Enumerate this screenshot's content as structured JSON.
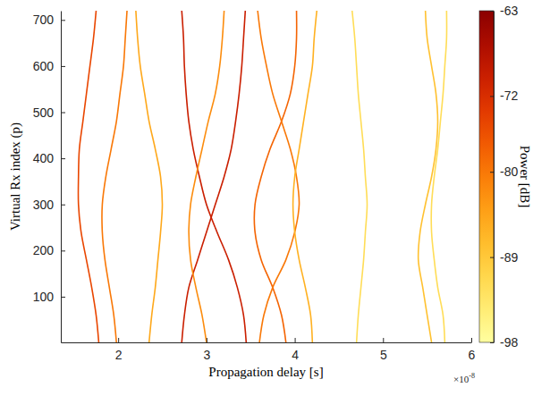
{
  "chart_data": {
    "type": "line",
    "x_label": "Propagation delay [s]",
    "y_label": "Virtual Rx index (p)",
    "x_multiplier": {
      "base": "×10",
      "exponent": "-8"
    },
    "xlim": [
      1.35,
      6
    ],
    "xticks": [
      2,
      3,
      4,
      5,
      6
    ],
    "ylim": [
      1,
      720
    ],
    "yticks": [
      100,
      200,
      300,
      400,
      500,
      600,
      700
    ],
    "grid": false,
    "y": [
      1,
      60,
      120,
      180,
      240,
      300,
      360,
      420,
      480,
      540,
      600,
      660,
      720
    ],
    "series": [
      {
        "power": -75,
        "values": [
          1.78,
          1.75,
          1.7,
          1.64,
          1.58,
          1.55,
          1.55,
          1.56,
          1.6,
          1.64,
          1.68,
          1.72,
          1.75
        ]
      },
      {
        "power": -80,
        "values": [
          1.98,
          1.95,
          1.9,
          1.85,
          1.82,
          1.82,
          1.86,
          1.92,
          1.98,
          2.02,
          2.06,
          2.08,
          2.1
        ]
      },
      {
        "power": -85,
        "values": [
          2.35,
          2.38,
          2.42,
          2.45,
          2.48,
          2.5,
          2.48,
          2.42,
          2.35,
          2.3,
          2.25,
          2.22,
          2.2
        ]
      },
      {
        "power": -70,
        "values": [
          2.72,
          2.75,
          2.8,
          2.9,
          3.0,
          3.1,
          3.2,
          3.28,
          3.33,
          3.37,
          3.4,
          3.42,
          3.44
        ]
      },
      {
        "power": -70,
        "values": [
          3.45,
          3.42,
          3.35,
          3.25,
          3.12,
          3.0,
          2.92,
          2.85,
          2.8,
          2.77,
          2.75,
          2.74,
          2.72
        ]
      },
      {
        "power": -82,
        "values": [
          3.0,
          2.95,
          2.88,
          2.82,
          2.8,
          2.82,
          2.88,
          2.95,
          3.02,
          3.1,
          3.15,
          3.18,
          3.2
        ]
      },
      {
        "power": -78,
        "values": [
          3.9,
          3.85,
          3.75,
          3.62,
          3.55,
          3.55,
          3.62,
          3.72,
          3.85,
          3.95,
          4.0,
          4.02,
          4.02
        ]
      },
      {
        "power": -80,
        "values": [
          3.6,
          3.65,
          3.75,
          3.9,
          4.0,
          4.05,
          4.02,
          3.95,
          3.85,
          3.75,
          3.68,
          3.62,
          3.58
        ]
      },
      {
        "power": -86,
        "values": [
          4.2,
          4.18,
          4.12,
          4.05,
          4.0,
          3.98,
          4.0,
          4.05,
          4.1,
          4.15,
          4.2,
          4.22,
          4.25
        ]
      },
      {
        "power": -92,
        "values": [
          4.7,
          4.72,
          4.75,
          4.78,
          4.8,
          4.82,
          4.8,
          4.78,
          4.75,
          4.72,
          4.7,
          4.68,
          4.65
        ]
      },
      {
        "power": -88,
        "values": [
          5.55,
          5.5,
          5.45,
          5.4,
          5.42,
          5.48,
          5.55,
          5.6,
          5.62,
          5.6,
          5.55,
          5.5,
          5.48
        ]
      },
      {
        "power": -92,
        "values": [
          5.7,
          5.68,
          5.62,
          5.58,
          5.55,
          5.55,
          5.58,
          5.62,
          5.65,
          5.68,
          5.7,
          5.72,
          5.72
        ]
      }
    ],
    "colorbar": {
      "label": "Power [dB]",
      "range": [
        -98,
        -63
      ],
      "ticks": [
        -63,
        -72,
        -80,
        -89,
        -98
      ]
    }
  }
}
